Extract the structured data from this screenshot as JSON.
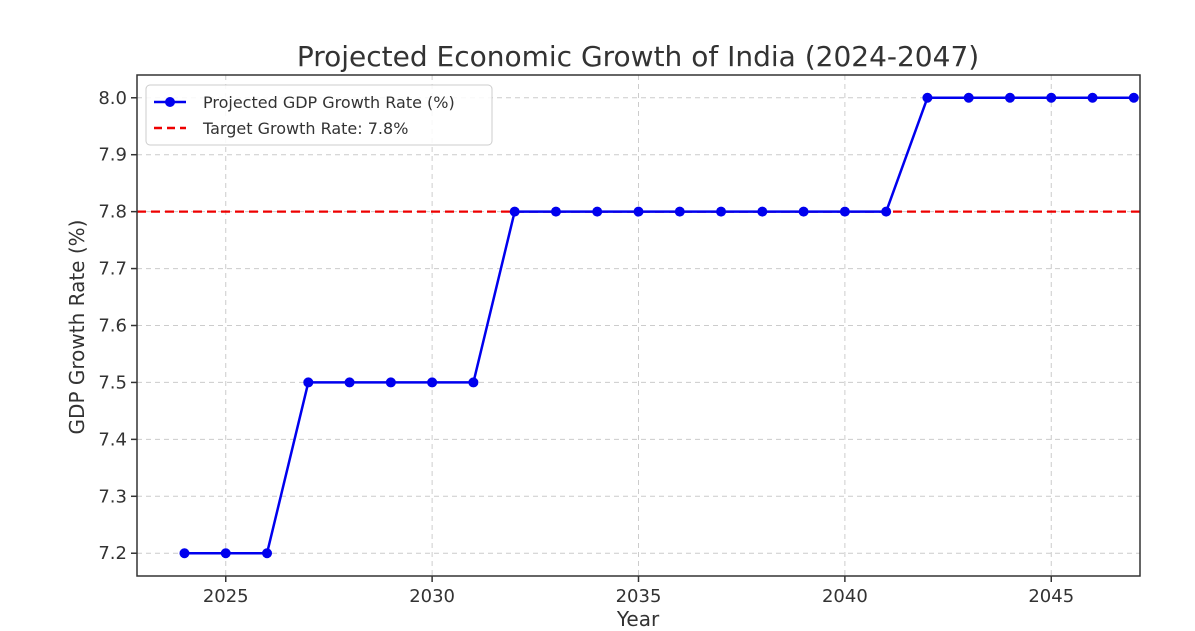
{
  "chart_data": {
    "type": "line",
    "title": "Projected Economic Growth of India (2024-2047)",
    "xlabel": "Year",
    "ylabel": "GDP Growth Rate (%)",
    "xlim": [
      2022.85,
      2047.15
    ],
    "ylim": [
      7.16,
      8.04
    ],
    "xticks": [
      2025,
      2030,
      2035,
      2040,
      2045
    ],
    "yticks": [
      7.2,
      7.3,
      7.4,
      7.5,
      7.6,
      7.7,
      7.8,
      7.9,
      8.0
    ],
    "xtick_labels": [
      "2025",
      "2030",
      "2035",
      "2040",
      "2045"
    ],
    "ytick_labels": [
      "7.2",
      "7.3",
      "7.4",
      "7.5",
      "7.6",
      "7.7",
      "7.8",
      "7.9",
      "8.0"
    ],
    "grid": true,
    "legend_position": "top-left",
    "series": [
      {
        "name": "Projected GDP Growth Rate (%)",
        "color": "#0000ee",
        "marker": "circle",
        "x": [
          2024,
          2025,
          2026,
          2027,
          2028,
          2029,
          2030,
          2031,
          2032,
          2033,
          2034,
          2035,
          2036,
          2037,
          2038,
          2039,
          2040,
          2041,
          2042,
          2043,
          2044,
          2045,
          2046,
          2047
        ],
        "y": [
          7.2,
          7.2,
          7.2,
          7.5,
          7.5,
          7.5,
          7.5,
          7.5,
          7.8,
          7.8,
          7.8,
          7.8,
          7.8,
          7.8,
          7.8,
          7.8,
          7.8,
          7.8,
          8.0,
          8.0,
          8.0,
          8.0,
          8.0,
          8.0
        ]
      }
    ],
    "reference_lines": [
      {
        "name": "Target Growth Rate: 7.8%",
        "orientation": "horizontal",
        "value": 7.8,
        "color": "#ee0000",
        "style": "dashed"
      }
    ]
  }
}
